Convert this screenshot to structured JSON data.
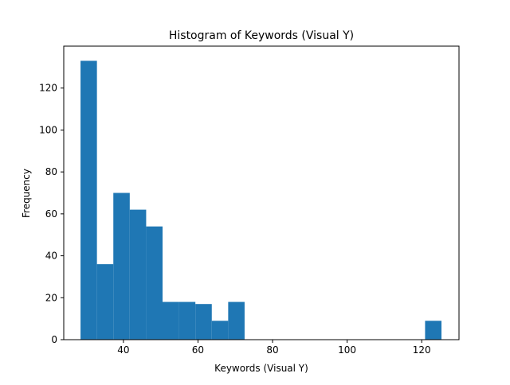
{
  "chart_data": {
    "type": "bar",
    "title": "Histogram of Keywords (Visual Y)",
    "xlabel": "Keywords (Visual Y)",
    "ylabel": "Frequency",
    "xlim": [
      24,
      130
    ],
    "ylim": [
      0,
      140
    ],
    "xticks": [
      40,
      60,
      80,
      100,
      120
    ],
    "yticks": [
      0,
      20,
      40,
      60,
      80,
      100,
      120
    ],
    "grid": false,
    "bar_color": "#1f77b4",
    "bins": [
      {
        "start": 28.5,
        "end": 32.9,
        "count": 133
      },
      {
        "start": 32.9,
        "end": 37.3,
        "count": 36
      },
      {
        "start": 37.3,
        "end": 41.7,
        "count": 70
      },
      {
        "start": 41.7,
        "end": 46.1,
        "count": 62
      },
      {
        "start": 46.1,
        "end": 50.5,
        "count": 54
      },
      {
        "start": 50.5,
        "end": 54.9,
        "count": 18
      },
      {
        "start": 54.9,
        "end": 59.3,
        "count": 18
      },
      {
        "start": 59.3,
        "end": 63.7,
        "count": 17
      },
      {
        "start": 63.7,
        "end": 68.1,
        "count": 9
      },
      {
        "start": 68.1,
        "end": 72.5,
        "count": 18
      },
      {
        "start": 120.9,
        "end": 125.3,
        "count": 9
      }
    ]
  }
}
